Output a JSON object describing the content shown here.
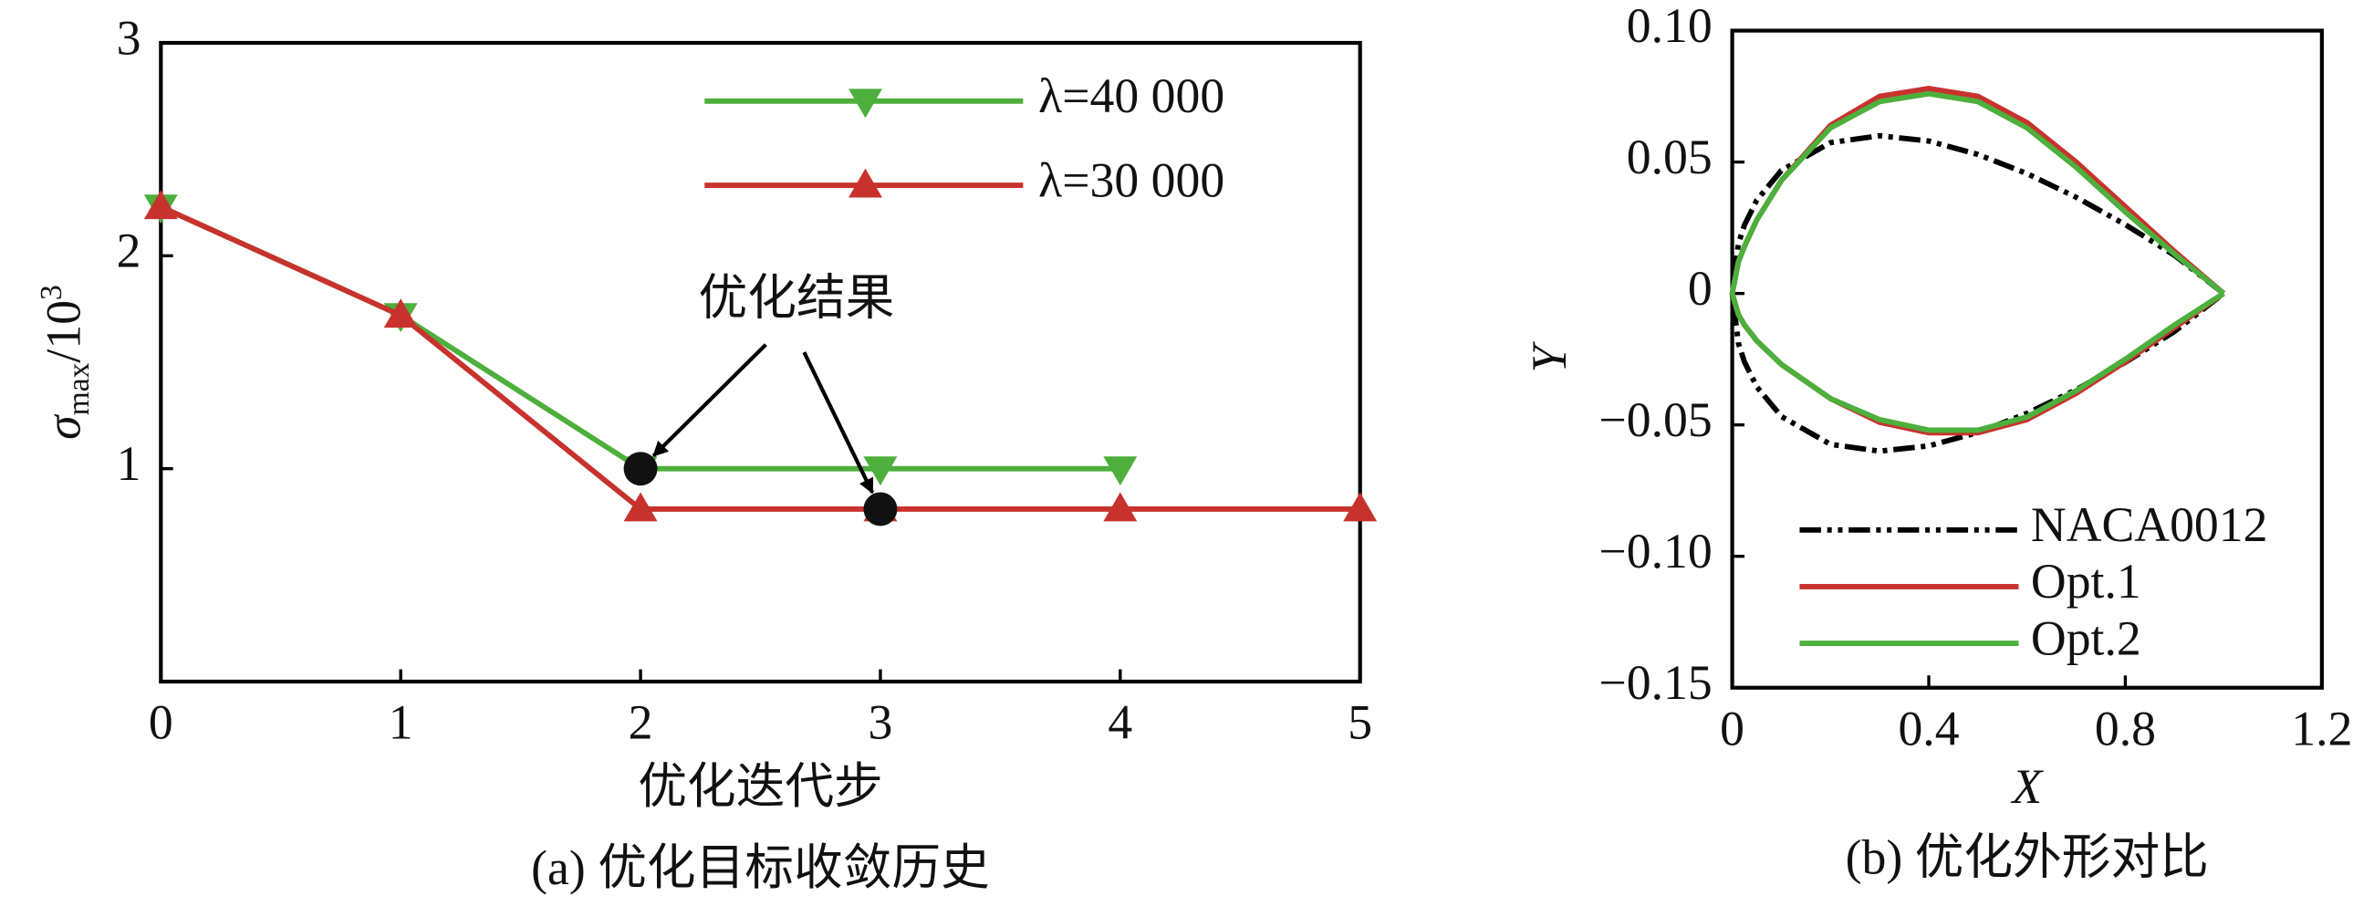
{
  "chart_data": [
    {
      "type": "line",
      "x": [
        0,
        1,
        2,
        3,
        4,
        5
      ],
      "series": [
        {
          "name": "λ=40 000",
          "color": "#4daf3c",
          "marker": "triangle-down",
          "values": [
            2.23,
            1.72,
            1.0,
            1.0,
            1.0,
            null
          ]
        },
        {
          "name": "λ=30 000",
          "color": "#c8322d",
          "marker": "triangle-up",
          "values": [
            2.23,
            1.72,
            0.81,
            0.81,
            0.81,
            0.81
          ]
        }
      ],
      "xlim": [
        0,
        5
      ],
      "xticks": [
        0,
        1,
        2,
        3,
        4,
        5
      ],
      "ylim": [
        0,
        3
      ],
      "yticks": [
        1,
        2,
        3
      ],
      "ylabel": {
        "symbol": "σ",
        "subscript": "max",
        "text": "/10",
        "superscript": "3"
      },
      "xlabel": "优化迭代步",
      "caption": "(a) 优化目标收敛历史",
      "legend": "upper right",
      "annotation": {
        "text": "优化结果",
        "points": [
          {
            "x": 2,
            "y": 1.0
          },
          {
            "x": 3,
            "y": 0.81
          }
        ]
      }
    },
    {
      "type": "line",
      "series": [
        {
          "name": "NACA0012",
          "color": "#000000",
          "dash": "dash-dot-dot",
          "x": [
            1.0,
            0.9,
            0.8,
            0.7,
            0.6,
            0.5,
            0.4,
            0.3,
            0.2,
            0.1,
            0.05,
            0.025,
            0.0125,
            0,
            0.0125,
            0.025,
            0.05,
            0.1,
            0.2,
            0.3,
            0.4,
            0.5,
            0.6,
            0.7,
            0.8,
            0.9,
            1.0
          ],
          "values": [
            0,
            0.0145,
            0.0262,
            0.0366,
            0.0456,
            0.0529,
            0.058,
            0.06,
            0.0574,
            0.0468,
            0.0355,
            0.0261,
            0.0189,
            0,
            -0.0189,
            -0.0261,
            -0.0355,
            -0.0468,
            -0.0574,
            -0.06,
            -0.058,
            -0.0529,
            -0.0456,
            -0.0366,
            -0.0262,
            -0.0145,
            0
          ]
        },
        {
          "name": "Opt.1",
          "color": "#c8322d",
          "dash": "solid",
          "x": [
            1.0,
            0.9,
            0.8,
            0.7,
            0.6,
            0.5,
            0.4,
            0.3,
            0.2,
            0.1,
            0.05,
            0.025,
            0.0125,
            0,
            0.0125,
            0.025,
            0.05,
            0.1,
            0.2,
            0.3,
            0.4,
            0.5,
            0.6,
            0.7,
            0.8,
            0.9,
            1.0
          ],
          "values": [
            0,
            0.016,
            0.033,
            0.05,
            0.065,
            0.075,
            0.078,
            0.075,
            0.064,
            0.043,
            0.028,
            0.018,
            0.012,
            0,
            -0.008,
            -0.012,
            -0.018,
            -0.027,
            -0.04,
            -0.049,
            -0.053,
            -0.053,
            -0.048,
            -0.038,
            -0.026,
            -0.013,
            0
          ]
        },
        {
          "name": "Opt.2",
          "color": "#4daf3c",
          "dash": "solid",
          "x": [
            1.0,
            0.9,
            0.8,
            0.7,
            0.6,
            0.5,
            0.4,
            0.3,
            0.2,
            0.1,
            0.05,
            0.025,
            0.0125,
            0,
            0.0125,
            0.025,
            0.05,
            0.1,
            0.2,
            0.3,
            0.4,
            0.5,
            0.6,
            0.7,
            0.8,
            0.9,
            1.0
          ],
          "values": [
            0,
            0.015,
            0.031,
            0.048,
            0.063,
            0.073,
            0.076,
            0.073,
            0.063,
            0.043,
            0.028,
            0.018,
            0.012,
            0,
            -0.008,
            -0.012,
            -0.018,
            -0.027,
            -0.04,
            -0.048,
            -0.052,
            -0.052,
            -0.047,
            -0.037,
            -0.025,
            -0.012,
            0
          ]
        }
      ],
      "xlim": [
        0,
        1.2
      ],
      "xticks": [
        0,
        0.4,
        0.8,
        1.2
      ],
      "ylim": [
        -0.15,
        0.1
      ],
      "yticks": [
        {
          "value": -0.15,
          "label": "−0.15"
        },
        {
          "value": -0.1,
          "label": "−0.10"
        },
        {
          "value": -0.05,
          "label": "−0.05"
        },
        0,
        0.05,
        {
          "value": 0.1,
          "label": "0.10"
        }
      ],
      "xlabel": "X",
      "ylabel": "Y",
      "caption": "(b) 优化外形对比",
      "legend": "lower left"
    }
  ]
}
